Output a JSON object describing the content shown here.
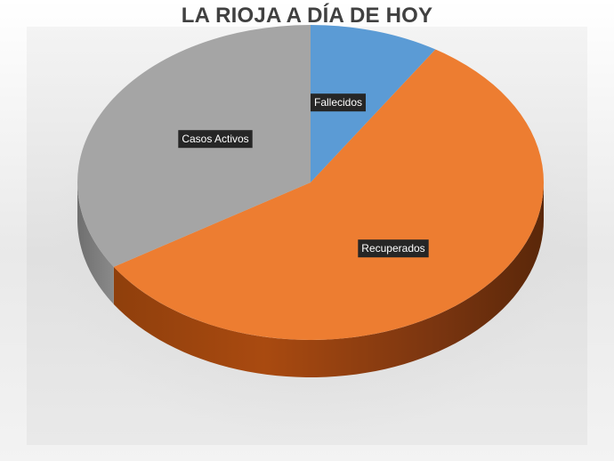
{
  "chart_data": {
    "type": "pie",
    "title": "LA RIOJA A DÍA DE HOY",
    "style": "3d",
    "labels": [
      "Fallecidos",
      "Recuperados",
      "Casos Activos"
    ],
    "values": [
      9,
      57,
      34
    ],
    "colors": [
      "#5b9bd5",
      "#ed7d31",
      "#a5a5a5"
    ],
    "background": "gradient-gray"
  }
}
